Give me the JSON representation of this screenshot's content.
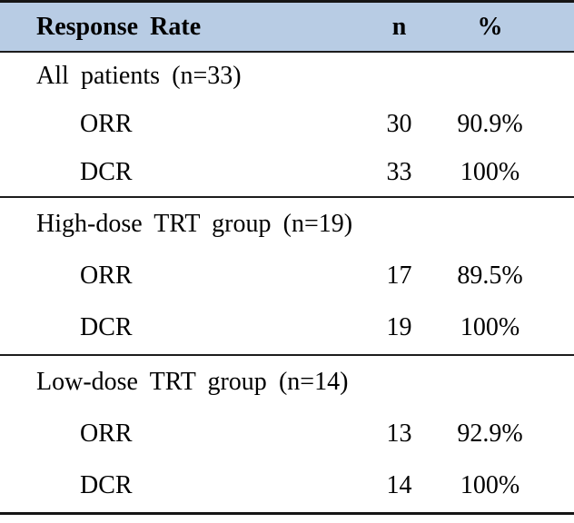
{
  "table": {
    "header": {
      "label": "Response Rate",
      "n": "n",
      "pct": "%"
    },
    "sections": [
      {
        "title": "All patients (n=33)",
        "rows": [
          {
            "label": "ORR",
            "n": "30",
            "pct": "90.9%"
          },
          {
            "label": "DCR",
            "n": "33",
            "pct": "100%"
          }
        ]
      },
      {
        "title": "High-dose TRT group (n=19)",
        "rows": [
          {
            "label": "ORR",
            "n": "17",
            "pct": "89.5%"
          },
          {
            "label": "DCR",
            "n": "19",
            "pct": "100%"
          }
        ]
      },
      {
        "title": "Low-dose TRT group (n=14)",
        "rows": [
          {
            "label": "ORR",
            "n": "13",
            "pct": "92.9%"
          },
          {
            "label": "DCR",
            "n": "14",
            "pct": "100%"
          }
        ]
      }
    ],
    "colors": {
      "header_bg": "#b8cce4",
      "rule": "#1a1a1a",
      "text": "#000000"
    }
  }
}
